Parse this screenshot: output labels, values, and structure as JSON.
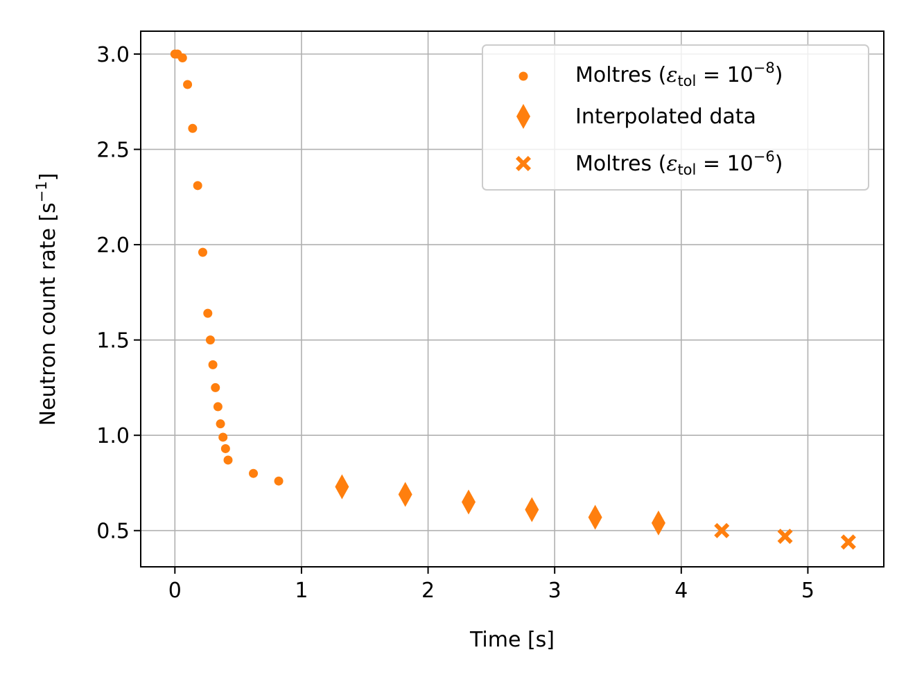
{
  "chart_data": {
    "type": "scatter",
    "xlabel": "Time [s]",
    "ylabel": {
      "main": "Neutron count rate [s",
      "sup": "−1",
      "close": "]"
    },
    "xlim": [
      -0.27,
      5.6
    ],
    "ylim": [
      0.31,
      3.12
    ],
    "xticks": [
      {
        "value": 0,
        "label": "0"
      },
      {
        "value": 1,
        "label": "1"
      },
      {
        "value": 2,
        "label": "2"
      },
      {
        "value": 3,
        "label": "3"
      },
      {
        "value": 4,
        "label": "4"
      },
      {
        "value": 5,
        "label": "5"
      }
    ],
    "yticks": [
      {
        "value": 0.5,
        "label": "0.5"
      },
      {
        "value": 1.0,
        "label": "1.0"
      },
      {
        "value": 1.5,
        "label": "1.5"
      },
      {
        "value": 2.0,
        "label": "2.0"
      },
      {
        "value": 2.5,
        "label": "2.5"
      },
      {
        "value": 3.0,
        "label": "3.0"
      }
    ],
    "grid": true,
    "legend_position": "top-right",
    "color": "#ff7f0e",
    "series": [
      {
        "key": "moltres-1e8",
        "marker": "circle",
        "label": {
          "prefix": "Moltres (",
          "eps": "ε",
          "sub": "tol",
          "eq": " = 10",
          "sup": "−8",
          "suffix": ")"
        },
        "points": [
          {
            "x": 0.0,
            "y": 3.0
          },
          {
            "x": 0.02,
            "y": 3.0
          },
          {
            "x": 0.06,
            "y": 2.98
          },
          {
            "x": 0.1,
            "y": 2.84
          },
          {
            "x": 0.14,
            "y": 2.61
          },
          {
            "x": 0.18,
            "y": 2.31
          },
          {
            "x": 0.22,
            "y": 1.96
          },
          {
            "x": 0.26,
            "y": 1.64
          },
          {
            "x": 0.28,
            "y": 1.5
          },
          {
            "x": 0.3,
            "y": 1.37
          },
          {
            "x": 0.32,
            "y": 1.25
          },
          {
            "x": 0.34,
            "y": 1.15
          },
          {
            "x": 0.36,
            "y": 1.06
          },
          {
            "x": 0.38,
            "y": 0.99
          },
          {
            "x": 0.4,
            "y": 0.93
          },
          {
            "x": 0.42,
            "y": 0.87
          },
          {
            "x": 0.62,
            "y": 0.8
          },
          {
            "x": 0.82,
            "y": 0.76
          }
        ]
      },
      {
        "key": "interpolated",
        "marker": "thin_diamond",
        "label": {
          "text": "Interpolated data"
        },
        "points": [
          {
            "x": 1.32,
            "y": 0.73
          },
          {
            "x": 1.82,
            "y": 0.69
          },
          {
            "x": 2.32,
            "y": 0.65
          },
          {
            "x": 2.82,
            "y": 0.61
          },
          {
            "x": 3.32,
            "y": 0.57
          },
          {
            "x": 3.82,
            "y": 0.54
          }
        ]
      },
      {
        "key": "moltres-1e6",
        "marker": "x_filled",
        "label": {
          "prefix": "Moltres (",
          "eps": "ε",
          "sub": "tol",
          "eq": " = 10",
          "sup": "−6",
          "suffix": ")"
        },
        "points": [
          {
            "x": 4.32,
            "y": 0.5
          },
          {
            "x": 4.82,
            "y": 0.47
          },
          {
            "x": 5.32,
            "y": 0.44
          }
        ]
      }
    ]
  }
}
